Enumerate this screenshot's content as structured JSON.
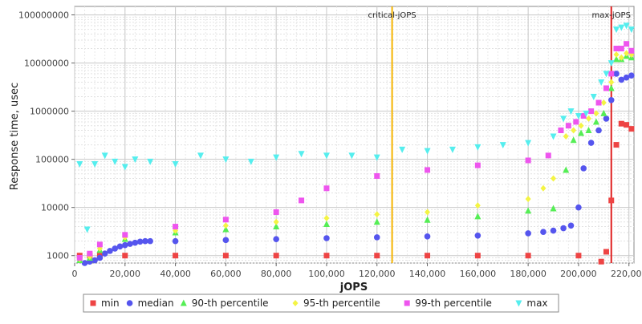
{
  "chart_data": {
    "type": "scatter",
    "xlabel": "jOPS",
    "ylabel": "Response time, usec",
    "xlim": [
      0,
      222000
    ],
    "ylim": [
      700,
      150000000
    ],
    "y_scale": "log",
    "x_ticks": [
      0,
      20000,
      40000,
      60000,
      80000,
      100000,
      120000,
      140000,
      160000,
      180000,
      200000,
      220000
    ],
    "x_tick_labels": [
      "0",
      "20,000",
      "40,000",
      "60,000",
      "80,000",
      "100,000",
      "120,000",
      "140,000",
      "160,000",
      "180,000",
      "200,000",
      "220,000"
    ],
    "y_ticks": [
      1000,
      10000,
      100000,
      1000000,
      10000000,
      100000000
    ],
    "y_tick_labels": [
      "1000",
      "10000",
      "100000",
      "1000000",
      "10000000",
      "100000000"
    ],
    "grid": true,
    "legend_position": "bottom",
    "markers": [
      {
        "label": "critical-jOPS",
        "x": 126000,
        "color": "#f5b400"
      },
      {
        "label": "max-jOPS",
        "x": 213000,
        "color": "#e02020"
      }
    ],
    "series": [
      {
        "name": "min",
        "color": "#ee4444",
        "marker": "square",
        "points": [
          [
            2000,
            1000
          ],
          [
            6000,
            1000
          ],
          [
            10000,
            1000
          ],
          [
            20000,
            1000
          ],
          [
            40000,
            1000
          ],
          [
            60000,
            1000
          ],
          [
            80000,
            1000
          ],
          [
            100000,
            1000
          ],
          [
            120000,
            1000
          ],
          [
            140000,
            1000
          ],
          [
            160000,
            1000
          ],
          [
            180000,
            1000
          ],
          [
            200000,
            1000
          ],
          [
            209000,
            750
          ],
          [
            211000,
            1200
          ],
          [
            213000,
            14000
          ],
          [
            215000,
            200000
          ],
          [
            217000,
            550000
          ],
          [
            219000,
            520000
          ],
          [
            221000,
            430000
          ]
        ]
      },
      {
        "name": "median",
        "color": "#5555ee",
        "marker": "circle",
        "points": [
          [
            4000,
            700
          ],
          [
            6000,
            750
          ],
          [
            8000,
            800
          ],
          [
            10000,
            900
          ],
          [
            12000,
            1100
          ],
          [
            14000,
            1250
          ],
          [
            16000,
            1400
          ],
          [
            18000,
            1550
          ],
          [
            20000,
            1650
          ],
          [
            22000,
            1750
          ],
          [
            24000,
            1850
          ],
          [
            26000,
            1950
          ],
          [
            28000,
            2000
          ],
          [
            30000,
            2000
          ],
          [
            40000,
            2000
          ],
          [
            60000,
            2100
          ],
          [
            80000,
            2200
          ],
          [
            100000,
            2300
          ],
          [
            120000,
            2400
          ],
          [
            140000,
            2500
          ],
          [
            160000,
            2600
          ],
          [
            180000,
            2900
          ],
          [
            186000,
            3100
          ],
          [
            190000,
            3300
          ],
          [
            194000,
            3700
          ],
          [
            197000,
            4200
          ],
          [
            200000,
            10000
          ],
          [
            202000,
            65000
          ],
          [
            205000,
            220000
          ],
          [
            208000,
            400000
          ],
          [
            211000,
            700000
          ],
          [
            213000,
            1700000
          ],
          [
            215000,
            6000000
          ],
          [
            217000,
            4500000
          ],
          [
            219000,
            5000000
          ],
          [
            221000,
            5500000
          ]
        ]
      },
      {
        "name": "90-th percentile",
        "color": "#55ee55",
        "marker": "triangle-up",
        "points": [
          [
            2000,
            800
          ],
          [
            6000,
            900
          ],
          [
            10000,
            1300
          ],
          [
            20000,
            2200
          ],
          [
            40000,
            3000
          ],
          [
            60000,
            3500
          ],
          [
            80000,
            4000
          ],
          [
            100000,
            4500
          ],
          [
            120000,
            5000
          ],
          [
            140000,
            5500
          ],
          [
            160000,
            6500
          ],
          [
            180000,
            8500
          ],
          [
            190000,
            9500
          ],
          [
            195000,
            60000
          ],
          [
            198000,
            250000
          ],
          [
            201000,
            350000
          ],
          [
            204000,
            400000
          ],
          [
            207000,
            600000
          ],
          [
            210000,
            900000
          ],
          [
            213000,
            3000000
          ],
          [
            215000,
            12000000
          ],
          [
            217000,
            12000000
          ],
          [
            219000,
            14000000
          ],
          [
            221000,
            13000000
          ]
        ]
      },
      {
        "name": "95-th percentile",
        "color": "#f4f444",
        "marker": "diamond",
        "points": [
          [
            2000,
            850
          ],
          [
            6000,
            950
          ],
          [
            10000,
            1400
          ],
          [
            20000,
            2400
          ],
          [
            40000,
            3300
          ],
          [
            60000,
            4200
          ],
          [
            80000,
            5000
          ],
          [
            100000,
            6000
          ],
          [
            120000,
            7200
          ],
          [
            140000,
            8000
          ],
          [
            160000,
            11000
          ],
          [
            180000,
            15000
          ],
          [
            186000,
            25000
          ],
          [
            190000,
            40000
          ],
          [
            195000,
            300000
          ],
          [
            198000,
            400000
          ],
          [
            201000,
            500000
          ],
          [
            204000,
            700000
          ],
          [
            207000,
            900000
          ],
          [
            210000,
            1500000
          ],
          [
            213000,
            4000000
          ],
          [
            215000,
            15000000
          ],
          [
            217000,
            13000000
          ],
          [
            219000,
            16000000
          ],
          [
            221000,
            15000000
          ]
        ]
      },
      {
        "name": "99-th percentile",
        "color": "#ee55ee",
        "marker": "square",
        "points": [
          [
            2000,
            900
          ],
          [
            6000,
            1100
          ],
          [
            10000,
            1700
          ],
          [
            20000,
            2700
          ],
          [
            40000,
            4000
          ],
          [
            60000,
            5600
          ],
          [
            80000,
            8000
          ],
          [
            90000,
            14000
          ],
          [
            100000,
            25000
          ],
          [
            120000,
            45000
          ],
          [
            140000,
            60000
          ],
          [
            160000,
            75000
          ],
          [
            180000,
            95000
          ],
          [
            188000,
            120000
          ],
          [
            193000,
            400000
          ],
          [
            196000,
            500000
          ],
          [
            199000,
            600000
          ],
          [
            202000,
            800000
          ],
          [
            205000,
            1000000
          ],
          [
            208000,
            1500000
          ],
          [
            211000,
            3000000
          ],
          [
            213000,
            6000000
          ],
          [
            215000,
            20000000
          ],
          [
            217000,
            20000000
          ],
          [
            219000,
            25000000
          ],
          [
            221000,
            18000000
          ]
        ]
      },
      {
        "name": "max",
        "color": "#55eeee",
        "marker": "triangle-down",
        "points": [
          [
            2000,
            80000
          ],
          [
            5000,
            3500
          ],
          [
            8000,
            80000
          ],
          [
            12000,
            120000
          ],
          [
            16000,
            90000
          ],
          [
            20000,
            70000
          ],
          [
            24000,
            100000
          ],
          [
            30000,
            90000
          ],
          [
            40000,
            80000
          ],
          [
            50000,
            120000
          ],
          [
            60000,
            100000
          ],
          [
            70000,
            90000
          ],
          [
            80000,
            110000
          ],
          [
            90000,
            130000
          ],
          [
            100000,
            120000
          ],
          [
            110000,
            120000
          ],
          [
            120000,
            110000
          ],
          [
            130000,
            160000
          ],
          [
            140000,
            150000
          ],
          [
            150000,
            160000
          ],
          [
            160000,
            180000
          ],
          [
            170000,
            200000
          ],
          [
            180000,
            220000
          ],
          [
            190000,
            300000
          ],
          [
            194000,
            700000
          ],
          [
            197000,
            1000000
          ],
          [
            200000,
            800000
          ],
          [
            203000,
            900000
          ],
          [
            206000,
            2000000
          ],
          [
            209000,
            4000000
          ],
          [
            211000,
            6000000
          ],
          [
            213000,
            10000000
          ],
          [
            215000,
            50000000
          ],
          [
            217000,
            55000000
          ],
          [
            219000,
            60000000
          ],
          [
            221000,
            50000000
          ]
        ]
      }
    ]
  }
}
